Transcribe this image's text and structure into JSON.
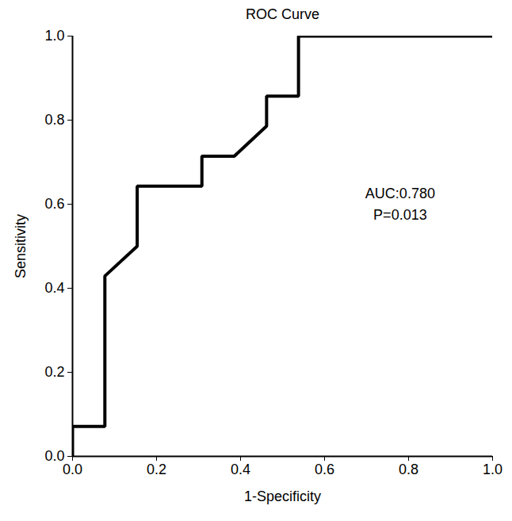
{
  "chart_data": {
    "type": "line",
    "title": "ROC Curve",
    "x_label": "1-Specificity",
    "y_label": "Sensitivity",
    "x": [
      0,
      0,
      0.077,
      0.077,
      0.154,
      0.154,
      0.308,
      0.308,
      0.385,
      0.462,
      0.462,
      0.538,
      0.538,
      1.0
    ],
    "values": [
      0,
      0.071,
      0.071,
      0.429,
      0.5,
      0.643,
      0.643,
      0.714,
      0.714,
      0.786,
      0.857,
      0.857,
      1.0,
      1.0
    ],
    "color": "#000000",
    "line_style": "solid",
    "xlim": [
      0,
      1
    ],
    "ylim": [
      0,
      1
    ],
    "xticks": [
      {
        "value": 0,
        "label": "0.0"
      },
      {
        "value": 0.2,
        "label": "0.2"
      },
      {
        "value": 0.4,
        "label": "0.4"
      },
      {
        "value": 0.6,
        "label": "0.6"
      },
      {
        "value": 0.8,
        "label": "0.8"
      },
      {
        "value": 1,
        "label": "1.0"
      }
    ],
    "yticks": [
      {
        "value": 0,
        "label": "0.0"
      },
      {
        "value": 0.2,
        "label": "0.2"
      },
      {
        "value": 0.4,
        "label": "0.4"
      },
      {
        "value": 0.6,
        "label": "0.6"
      },
      {
        "value": 0.8,
        "label": "0.8"
      },
      {
        "value": 1,
        "label": "1.0"
      }
    ],
    "grid": false,
    "annotations": [
      {
        "text": "AUC:0.780",
        "x": 0.78,
        "y": 0.625
      },
      {
        "text": "P=0.013",
        "x": 0.78,
        "y": 0.575
      }
    ]
  }
}
